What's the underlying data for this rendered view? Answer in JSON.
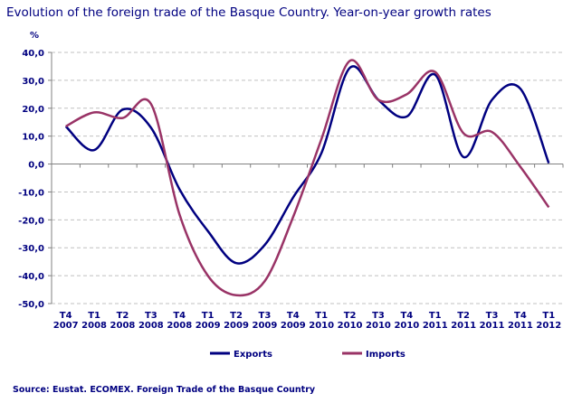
{
  "title": "Evolution of the foreign trade of the Basque Country. Year-on-year growth rates",
  "source": "Source: Eustat. ECOMEX. Foreign Trade of the Basque Country",
  "chart_data": {
    "type": "line",
    "title": "Evolution of the foreign trade of the Basque Country. Year-on-year growth rates",
    "ylabel": "%",
    "ylim": [
      -50,
      40
    ],
    "yticks": [
      40,
      30,
      20,
      10,
      0,
      -10,
      -20,
      -30,
      -40,
      -50
    ],
    "ytick_labels": [
      "40,0",
      "30,0",
      "20,0",
      "10,0",
      "0,0",
      "-10,0",
      "-20,0",
      "-30,0",
      "-40,0",
      "-50,0"
    ],
    "grid": "horizontal dashed",
    "legend": "bottom",
    "smooth": true,
    "categories": [
      [
        "T4",
        "2007"
      ],
      [
        "T1",
        "2008"
      ],
      [
        "T2",
        "2008"
      ],
      [
        "T3",
        "2008"
      ],
      [
        "T4",
        "2008"
      ],
      [
        "T1",
        "2009"
      ],
      [
        "T2",
        "2009"
      ],
      [
        "T3",
        "2009"
      ],
      [
        "T4",
        "2009"
      ],
      [
        "T1",
        "2010"
      ],
      [
        "T2",
        "2010"
      ],
      [
        "T3",
        "2010"
      ],
      [
        "T4",
        "2010"
      ],
      [
        "T1",
        "2011"
      ],
      [
        "T2",
        "2011"
      ],
      [
        "T3",
        "2011"
      ],
      [
        "T4",
        "2011"
      ],
      [
        "T1",
        "2012"
      ]
    ],
    "series": [
      {
        "name": "Exports",
        "color": "#000080",
        "values": [
          13.5,
          5,
          19.5,
          13,
          -9,
          -24,
          -35.5,
          -29,
          -12,
          4,
          34.5,
          23,
          17,
          32,
          2.5,
          23,
          27,
          0.3
        ]
      },
      {
        "name": "Imports",
        "color": "#993366",
        "values": [
          13.5,
          18.5,
          16.5,
          21.5,
          -18,
          -40,
          -47,
          -42,
          -19,
          9,
          37,
          23,
          25,
          33,
          11,
          11.5,
          -1,
          -15.5
        ]
      }
    ]
  }
}
